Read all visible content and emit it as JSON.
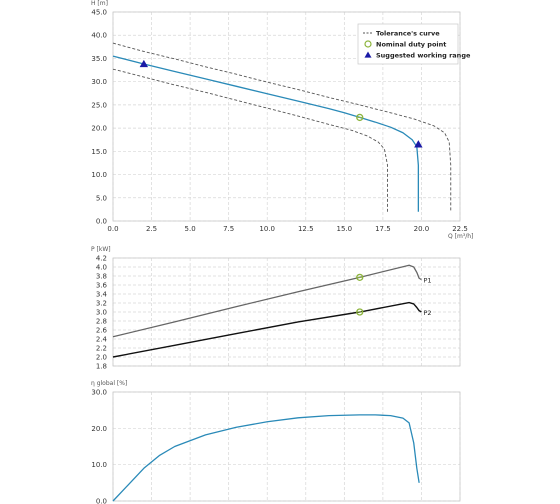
{
  "chart_data": [
    {
      "type": "line",
      "ylabel": "H [m]",
      "xlabel": "Q [m³/h]",
      "xlim": [
        0,
        22.5
      ],
      "ylim": [
        0,
        45
      ],
      "x_ticks": [
        0,
        2.5,
        5,
        7.5,
        10,
        12.5,
        15,
        17.5,
        20,
        22.5
      ],
      "x_tick_labels": [
        "0.0",
        "2.5",
        "5.0",
        "7.5",
        "10.0",
        "12.5",
        "15.0",
        "17.5",
        "20.0",
        "22.5"
      ],
      "y_ticks": [
        0,
        5,
        10,
        15,
        20,
        25,
        30,
        35,
        40,
        45
      ],
      "y_tick_labels": [
        "0.0",
        "5.0",
        "10.0",
        "15.0",
        "20.0",
        "25.0",
        "30.0",
        "35.0",
        "40.0",
        "45.0"
      ],
      "legend": {
        "position": "top-right",
        "entries": [
          {
            "label": "Tolerance's curve",
            "marker": "dashed-line",
            "color": "#555555"
          },
          {
            "label": "Nominal duty point",
            "marker": "circle",
            "color": "#8cb43c"
          },
          {
            "label": "Suggested working range",
            "marker": "triangle",
            "color": "#1a1aa6"
          }
        ]
      },
      "series": [
        {
          "role": "pump-curve",
          "color": "#2a8ab8",
          "x": [
            0,
            2,
            4,
            6,
            8,
            10,
            12,
            14,
            15,
            16,
            17,
            18,
            18.8,
            19.4,
            19.7,
            19.8,
            19.8,
            19.8
          ],
          "y": [
            35.5,
            33.8,
            32.2,
            30.6,
            29.0,
            27.4,
            25.8,
            24.2,
            23.3,
            22.3,
            21.3,
            20.2,
            19.0,
            17.5,
            16.0,
            12.0,
            5.0,
            2.0
          ]
        },
        {
          "role": "tolerance-upper",
          "dashed": true,
          "color": "#555555",
          "x": [
            0,
            2,
            4,
            6,
            8,
            10,
            12,
            14,
            16,
            18,
            19.5,
            20.8,
            21.5,
            21.8,
            21.9,
            21.9
          ],
          "y": [
            38.3,
            36.5,
            34.9,
            33.2,
            31.6,
            29.9,
            28.3,
            26.6,
            25.0,
            23.3,
            22.0,
            20.5,
            19.0,
            17.0,
            12.0,
            2.0
          ]
        },
        {
          "role": "tolerance-lower",
          "dashed": true,
          "color": "#555555",
          "x": [
            0,
            2,
            4,
            6,
            8,
            10,
            12,
            14,
            15.5,
            16.5,
            17.2,
            17.6,
            17.8,
            17.8
          ],
          "y": [
            32.7,
            31.0,
            29.3,
            27.7,
            26.0,
            24.3,
            22.6,
            20.8,
            19.5,
            18.3,
            17.0,
            15.5,
            12.0,
            2.0
          ]
        }
      ],
      "markers": [
        {
          "type": "circle",
          "x": 16.0,
          "y": 22.3,
          "color": "#8cb43c"
        },
        {
          "type": "triangle",
          "x": 2.0,
          "y": 33.8,
          "color": "#1a1aa6"
        },
        {
          "type": "triangle",
          "x": 19.8,
          "y": 16.5,
          "color": "#1a1aa6"
        }
      ]
    },
    {
      "type": "line",
      "ylabel": "P [kW]",
      "xlim": [
        0,
        22.5
      ],
      "ylim": [
        1.8,
        4.2
      ],
      "x_ticks": [
        0,
        2.5,
        5,
        7.5,
        10,
        12.5,
        15,
        17.5,
        20,
        22.5
      ],
      "y_ticks": [
        1.8,
        2.0,
        2.2,
        2.4,
        2.6,
        2.8,
        3.0,
        3.2,
        3.4,
        3.6,
        3.8,
        4.0,
        4.2
      ],
      "y_tick_labels": [
        "1.8",
        "2.0",
        "2.2",
        "2.4",
        "2.6",
        "2.8",
        "3.0",
        "3.2",
        "3.4",
        "3.6",
        "3.8",
        "4.0",
        "4.2"
      ],
      "series": [
        {
          "name": "P1",
          "color": "#666666",
          "x": [
            0,
            4,
            8,
            12,
            16,
            19.2,
            19.5,
            19.7,
            19.85,
            20.0
          ],
          "y": [
            2.45,
            2.78,
            3.12,
            3.45,
            3.77,
            4.04,
            4.0,
            3.88,
            3.75,
            3.72
          ]
        },
        {
          "name": "P2",
          "color": "#111111",
          "x": [
            0,
            4,
            8,
            12,
            16,
            19.2,
            19.5,
            19.7,
            19.85,
            20.0
          ],
          "y": [
            2.0,
            2.26,
            2.52,
            2.78,
            3.0,
            3.21,
            3.18,
            3.1,
            3.03,
            3.0
          ]
        }
      ],
      "markers": [
        {
          "type": "circle",
          "x": 16.0,
          "y": 3.77,
          "color": "#8cb43c"
        },
        {
          "type": "circle",
          "x": 16.0,
          "y": 3.0,
          "color": "#8cb43c"
        }
      ]
    },
    {
      "type": "line",
      "ylabel": "η global [%]",
      "xlim": [
        0,
        22.5
      ],
      "ylim": [
        0,
        30
      ],
      "x_ticks": [
        0,
        2.5,
        5,
        7.5,
        10,
        12.5,
        15,
        17.5,
        20,
        22.5
      ],
      "y_ticks": [
        0,
        10,
        20,
        30
      ],
      "y_tick_labels": [
        "0.0",
        "10.0",
        "20.0",
        "30.0"
      ],
      "series": [
        {
          "role": "efficiency",
          "color": "#2a8ab8",
          "x": [
            0,
            1,
            2,
            3,
            4,
            6,
            8,
            10,
            12,
            14,
            16,
            17,
            18,
            18.8,
            19.2,
            19.5,
            19.7,
            19.85
          ],
          "y": [
            0,
            4.5,
            9.0,
            12.5,
            15.0,
            18.2,
            20.3,
            21.8,
            22.9,
            23.5,
            23.7,
            23.7,
            23.5,
            22.8,
            21.5,
            16.0,
            9.0,
            5.0
          ]
        }
      ]
    }
  ]
}
